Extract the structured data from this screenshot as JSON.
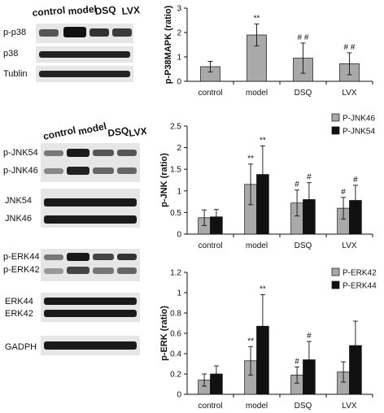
{
  "blots": {
    "panel1": {
      "headers": [
        "control",
        "model",
        "DSQ",
        "LVX"
      ],
      "rows": [
        "p-p38",
        "p38",
        "Tublin"
      ]
    },
    "panel2": {
      "headers": [
        "control",
        "model",
        "DSQ",
        "LVX"
      ],
      "rows": [
        "p-JNK54",
        "p-JNK46",
        "JNK54",
        "JNK46",
        "p-ERK44",
        "p-ERK42",
        "ERK44",
        "ERK42",
        "GADPH"
      ]
    }
  },
  "chart_data": [
    {
      "type": "bar",
      "ylabel": "p-P38MAPK (ratio)",
      "categories": [
        "control",
        "model",
        "DSQ",
        "LVX"
      ],
      "ylim": [
        0,
        3
      ],
      "yticks": [
        "0",
        "1",
        "2",
        "3"
      ],
      "series": [
        {
          "values": [
            0.6,
            1.9,
            0.95,
            0.72
          ],
          "errors": [
            0.22,
            0.45,
            0.62,
            0.45
          ],
          "color": "#a9a9a9"
        }
      ],
      "annotations": [
        "",
        "**",
        "# #",
        "# #"
      ]
    },
    {
      "type": "bar",
      "ylabel": "p-JNK (ratio)",
      "categories": [
        "control",
        "model",
        "DSQ",
        "LVX"
      ],
      "ylim": [
        0,
        2.5
      ],
      "yticks": [
        "0",
        "0.5",
        "1",
        "1.5",
        "2",
        "2.5"
      ],
      "series": [
        {
          "name": "P-JNK46",
          "values": [
            0.38,
            1.15,
            0.72,
            0.6
          ],
          "errors": [
            0.18,
            0.47,
            0.3,
            0.25
          ],
          "color": "#a9a9a9"
        },
        {
          "name": "P-JNK54",
          "values": [
            0.4,
            1.38,
            0.8,
            0.78
          ],
          "errors": [
            0.17,
            0.66,
            0.39,
            0.35
          ],
          "color": "#111111"
        }
      ],
      "annotations": [
        [
          "",
          ""
        ],
        [
          "**",
          "**"
        ],
        [
          "#",
          "#"
        ],
        [
          "#",
          "#"
        ]
      ]
    },
    {
      "type": "bar",
      "ylabel": "p-ERK (ratio)",
      "categories": [
        "control",
        "model",
        "DSQ",
        "LVX"
      ],
      "ylim": [
        0,
        1.2
      ],
      "yticks": [
        "0",
        "0.2",
        "0.4",
        "0.6",
        "0.8",
        "1",
        "1.2"
      ],
      "series": [
        {
          "name": "P-ERK42",
          "values": [
            0.14,
            0.33,
            0.19,
            0.22
          ],
          "errors": [
            0.06,
            0.14,
            0.08,
            0.1
          ],
          "color": "#a9a9a9"
        },
        {
          "name": "P-ERK44",
          "values": [
            0.2,
            0.67,
            0.34,
            0.48
          ],
          "errors": [
            0.08,
            0.31,
            0.18,
            0.24
          ],
          "color": "#111111"
        }
      ],
      "annotations": [
        [
          "",
          ""
        ],
        [
          "**",
          "**"
        ],
        [
          "#",
          "#"
        ],
        [
          "",
          ""
        ]
      ]
    }
  ]
}
